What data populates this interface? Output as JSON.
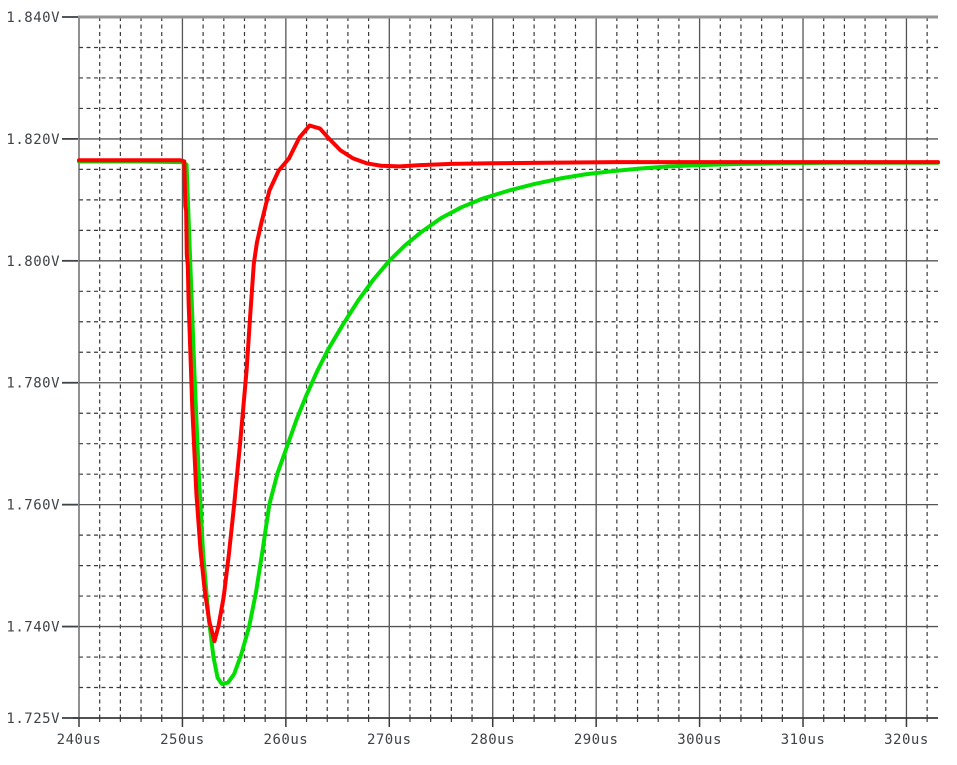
{
  "window": {
    "background_color": "#ffffff"
  },
  "chart_data": {
    "type": "line",
    "title": "",
    "xlabel": "",
    "ylabel": "",
    "x_unit": "us",
    "y_unit": "V",
    "x_range_us": [
      240,
      323.05
    ],
    "y_range_v": [
      1.725,
      1.84
    ],
    "x_major_step_us": 10,
    "x_minor_step_us": 2,
    "y_major_step_v": 0.02,
    "y_minor_step_v": 0.005,
    "grid": "major-solid-minor-dashed",
    "legend": "none",
    "style": {
      "background": "#ffffff",
      "grid_major": "#555555",
      "grid_minor": "#3a3a3a",
      "border_top": "#949494",
      "axis": "#3a3a3a",
      "label_color": "#3f4347"
    },
    "x_ticks": [
      {
        "t": 240,
        "label": "240us"
      },
      {
        "t": 250,
        "label": "250us"
      },
      {
        "t": 260,
        "label": "260us"
      },
      {
        "t": 270,
        "label": "270us"
      },
      {
        "t": 280,
        "label": "280us"
      },
      {
        "t": 290,
        "label": "290us"
      },
      {
        "t": 300,
        "label": "300us"
      },
      {
        "t": 310,
        "label": "310us"
      },
      {
        "t": 320,
        "label": "320us"
      }
    ],
    "y_ticks": [
      {
        "v": 1.84,
        "label": "1.840V"
      },
      {
        "v": 1.82,
        "label": "1.820V"
      },
      {
        "v": 1.8,
        "label": "1.800V"
      },
      {
        "v": 1.78,
        "label": "1.780V"
      },
      {
        "v": 1.76,
        "label": "1.760V"
      },
      {
        "v": 1.74,
        "label": "1.740V"
      },
      {
        "v": 1.725,
        "label": "1.725V"
      }
    ],
    "series": [
      {
        "name": "green",
        "color": "#00df00",
        "points": [
          [
            240.0,
            1.8163
          ],
          [
            246.0,
            1.8163
          ],
          [
            249.9,
            1.8162
          ],
          [
            250.4,
            1.8158
          ],
          [
            250.75,
            1.8
          ],
          [
            251.15,
            1.782
          ],
          [
            251.55,
            1.766
          ],
          [
            252.0,
            1.752
          ],
          [
            252.5,
            1.742
          ],
          [
            253.0,
            1.735
          ],
          [
            253.4,
            1.7316
          ],
          [
            253.8,
            1.7306
          ],
          [
            254.4,
            1.7308
          ],
          [
            255.0,
            1.7322
          ],
          [
            255.7,
            1.7355
          ],
          [
            256.45,
            1.74
          ],
          [
            257.1,
            1.7455
          ],
          [
            257.75,
            1.7525
          ],
          [
            258.4,
            1.76
          ],
          [
            259.2,
            1.7652
          ],
          [
            260.0,
            1.769
          ],
          [
            261.0,
            1.7738
          ],
          [
            262.0,
            1.778
          ],
          [
            263.0,
            1.7818
          ],
          [
            264.1,
            1.7855
          ],
          [
            265.5,
            1.7895
          ],
          [
            267.0,
            1.7935
          ],
          [
            268.5,
            1.797
          ],
          [
            270.0,
            1.8
          ],
          [
            271.5,
            1.8025
          ],
          [
            273.0,
            1.8046
          ],
          [
            275.0,
            1.807
          ],
          [
            277.0,
            1.8088
          ],
          [
            279.0,
            1.8102
          ],
          [
            281.5,
            1.8115
          ],
          [
            284.0,
            1.8126
          ],
          [
            286.5,
            1.8135
          ],
          [
            289.0,
            1.8142
          ],
          [
            291.5,
            1.8147
          ],
          [
            294.0,
            1.8151
          ],
          [
            297.0,
            1.8155
          ],
          [
            300.0,
            1.8157
          ],
          [
            304.0,
            1.8159
          ],
          [
            308.0,
            1.816
          ],
          [
            313.0,
            1.8161
          ],
          [
            318.0,
            1.8161
          ],
          [
            323.05,
            1.8161
          ]
        ]
      },
      {
        "name": "red",
        "color": "#ff0000",
        "points": [
          [
            240.0,
            1.8165
          ],
          [
            244.0,
            1.8165
          ],
          [
            248.0,
            1.8165
          ],
          [
            249.8,
            1.8165
          ],
          [
            250.18,
            1.8163
          ],
          [
            250.28,
            1.809
          ],
          [
            250.36,
            1.8082
          ],
          [
            250.42,
            1.801
          ],
          [
            250.52,
            1.7992
          ],
          [
            250.6,
            1.793
          ],
          [
            250.95,
            1.776
          ],
          [
            251.35,
            1.7618
          ],
          [
            251.75,
            1.7525
          ],
          [
            252.15,
            1.746
          ],
          [
            252.6,
            1.7408
          ],
          [
            253.1,
            1.7376
          ],
          [
            253.5,
            1.7402
          ],
          [
            254.0,
            1.745
          ],
          [
            254.5,
            1.752
          ],
          [
            255.0,
            1.76
          ],
          [
            255.6,
            1.7705
          ],
          [
            256.2,
            1.782
          ],
          [
            256.55,
            1.791
          ],
          [
            256.9,
            1.7995
          ],
          [
            257.2,
            1.803
          ],
          [
            257.6,
            1.806
          ],
          [
            258.4,
            1.8115
          ],
          [
            259.3,
            1.8148
          ],
          [
            260.3,
            1.8168
          ],
          [
            261.3,
            1.8202
          ],
          [
            262.3,
            1.8222
          ],
          [
            263.3,
            1.8217
          ],
          [
            264.2,
            1.82
          ],
          [
            265.3,
            1.8181
          ],
          [
            266.5,
            1.8168
          ],
          [
            267.8,
            1.816
          ],
          [
            269.2,
            1.8156
          ],
          [
            271.0,
            1.8155
          ],
          [
            273.0,
            1.8157
          ],
          [
            276.0,
            1.8159
          ],
          [
            280.0,
            1.816
          ],
          [
            285.0,
            1.8161
          ],
          [
            292.0,
            1.8162
          ],
          [
            300.0,
            1.8162
          ],
          [
            310.0,
            1.8162
          ],
          [
            323.05,
            1.8162
          ]
        ]
      }
    ]
  }
}
